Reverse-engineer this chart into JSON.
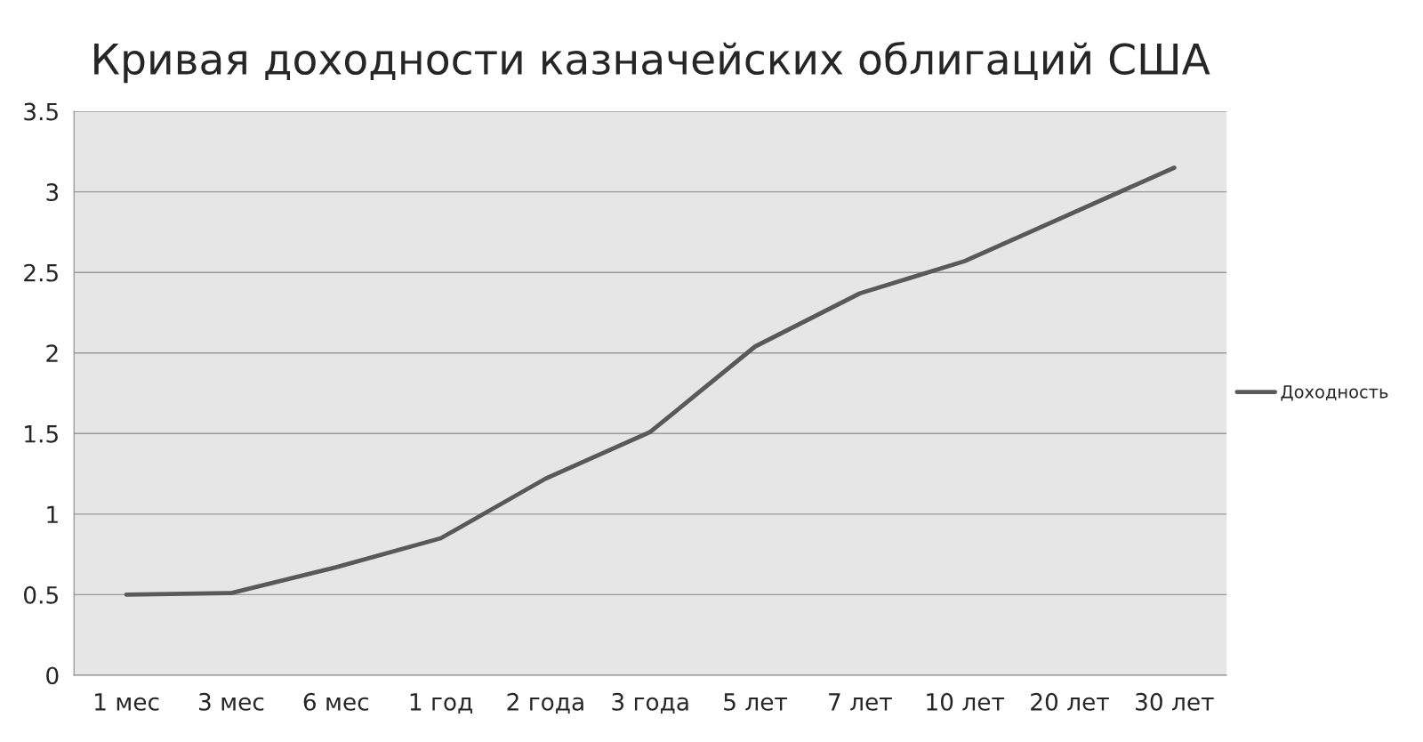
{
  "chart_data": {
    "type": "line",
    "title": "Кривая доходности казначейских облигаций США",
    "categories": [
      "1 мес",
      "3 мес",
      "6 мес",
      "1 год",
      "2 года",
      "3 года",
      "5 лет",
      "7 лет",
      "10 лет",
      "20 лет",
      "30 лет"
    ],
    "series": [
      {
        "name": "Доходность",
        "color": "#595959",
        "values": [
          0.5,
          0.51,
          0.67,
          0.85,
          1.22,
          1.51,
          2.04,
          2.37,
          2.57,
          2.86,
          3.15
        ]
      }
    ],
    "ylim": [
      0,
      3.5
    ],
    "yticks": [
      0,
      0.5,
      1,
      1.5,
      2,
      2.5,
      3,
      3.5
    ],
    "grid": "y",
    "legend": "right"
  }
}
